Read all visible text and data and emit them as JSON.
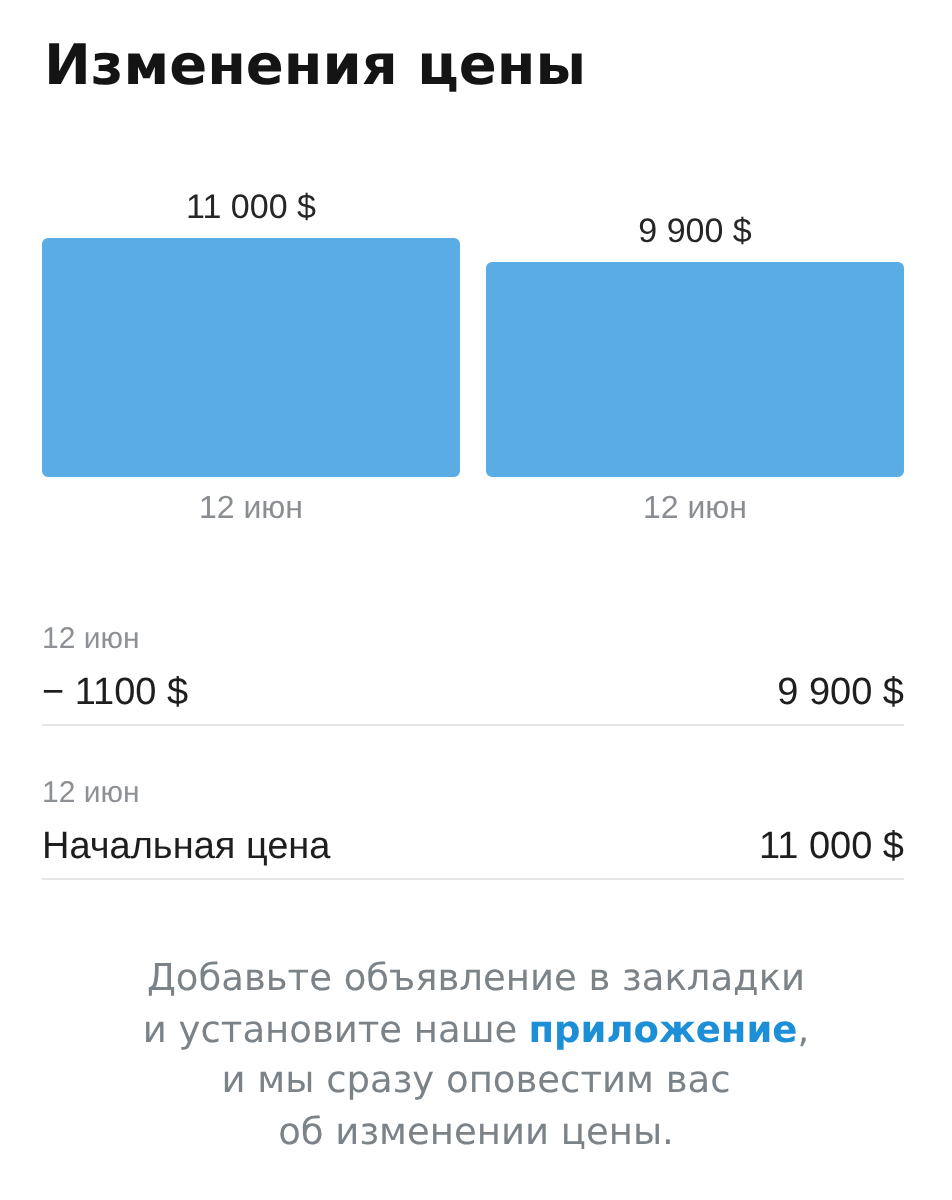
{
  "chart_data": {
    "type": "bar",
    "title": "Изменения цены",
    "categories": [
      "12 июн",
      "12 июн"
    ],
    "values": [
      11000,
      9900
    ],
    "color": "#5aade4",
    "ylim": [
      0,
      11000
    ],
    "value_labels": [
      "11 000 $",
      "9 900 $"
    ],
    "tick_labels": "x",
    "annotations": [
      "12 июн",
      "− 1100 $",
      "9 900 $",
      "12 июн",
      "Начальная цена",
      "11 000 $",
      "Добавьте объявление в закладки",
      "и установите наше",
      "приложение",
      ",",
      "и мы сразу оповестим вас",
      "об изменении цены."
    ]
  }
}
